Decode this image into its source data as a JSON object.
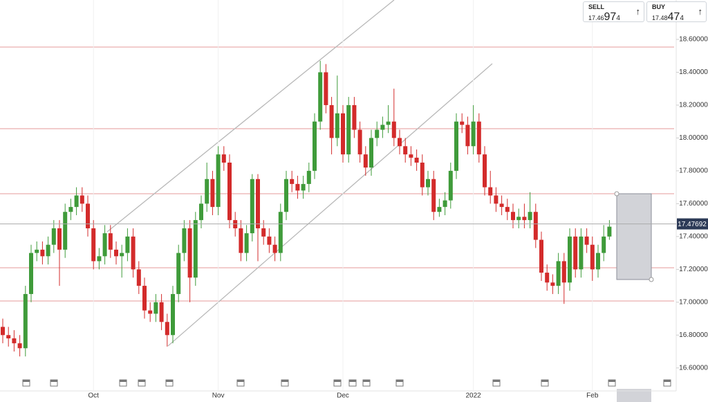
{
  "chart_data": {
    "type": "candlestick",
    "categories": [
      null,
      null,
      null,
      null,
      null,
      null,
      null,
      null,
      null,
      null,
      null,
      null,
      null,
      null,
      null,
      null,
      "Oct",
      null,
      null,
      null,
      null,
      null,
      null,
      null,
      null,
      null,
      null,
      null,
      null,
      null,
      null,
      null,
      null,
      null,
      null,
      null,
      null,
      null,
      "Nov",
      null,
      null,
      null,
      null,
      null,
      null,
      null,
      null,
      null,
      null,
      null,
      null,
      null,
      null,
      null,
      null,
      null,
      null,
      null,
      null,
      null,
      "Dec",
      null,
      null,
      null,
      null,
      null,
      null,
      null,
      null,
      null,
      null,
      null,
      null,
      null,
      null,
      null,
      null,
      null,
      null,
      null,
      null,
      null,
      null,
      "2022",
      null,
      null,
      null,
      null,
      null,
      null,
      null,
      null,
      null,
      null,
      null,
      null,
      null,
      null,
      null,
      null,
      null,
      null,
      null,
      null,
      "Feb",
      null,
      null,
      null
    ],
    "open": [
      16.85,
      16.8,
      16.78,
      16.75,
      16.72,
      17.05,
      17.3,
      17.32,
      17.28,
      17.35,
      17.45,
      17.32,
      17.55,
      17.58,
      17.65,
      17.6,
      17.45,
      17.25,
      17.28,
      17.42,
      17.32,
      17.28,
      17.3,
      17.4,
      17.2,
      17.1,
      16.95,
      16.93,
      17.0,
      16.88,
      16.8,
      17.05,
      17.3,
      17.45,
      17.15,
      17.5,
      17.6,
      17.75,
      17.58,
      17.9,
      17.85,
      17.5,
      17.45,
      17.3,
      17.42,
      17.75,
      17.45,
      17.4,
      17.35,
      17.3,
      17.55,
      17.75,
      17.72,
      17.68,
      17.72,
      17.8,
      18.1,
      18.4,
      18.2,
      18.0,
      18.15,
      17.9,
      18.2,
      18.05,
      17.9,
      17.82,
      18.0,
      18.05,
      18.08,
      18.1,
      18.0,
      17.95,
      17.9,
      17.88,
      17.85,
      17.7,
      17.75,
      17.55,
      17.58,
      17.62,
      17.8,
      18.1,
      18.08,
      17.95,
      18.1,
      17.9,
      17.7,
      17.65,
      17.6,
      17.58,
      17.55,
      17.5,
      17.52,
      17.5,
      17.55,
      17.38,
      17.18,
      17.12,
      17.1,
      17.25,
      17.12,
      17.4,
      17.2,
      17.4,
      17.35,
      17.2,
      17.3,
      17.4
    ],
    "high": [
      16.9,
      16.85,
      16.83,
      16.8,
      17.1,
      17.35,
      17.37,
      17.37,
      17.4,
      17.5,
      17.5,
      17.6,
      17.63,
      17.7,
      17.7,
      17.65,
      17.5,
      17.33,
      17.47,
      17.47,
      17.37,
      17.35,
      17.45,
      17.45,
      17.25,
      17.15,
      17.0,
      17.05,
      17.05,
      16.93,
      17.1,
      17.35,
      17.5,
      17.5,
      17.55,
      17.65,
      17.85,
      17.8,
      17.95,
      17.95,
      17.9,
      17.55,
      17.5,
      17.47,
      17.78,
      17.78,
      17.5,
      17.45,
      17.4,
      17.6,
      17.8,
      17.8,
      17.77,
      17.77,
      17.85,
      18.15,
      18.47,
      18.45,
      18.25,
      18.38,
      18.2,
      18.25,
      18.25,
      18.1,
      17.95,
      18.05,
      18.1,
      18.13,
      18.2,
      18.3,
      18.05,
      18.0,
      17.95,
      17.93,
      17.9,
      17.8,
      17.8,
      17.63,
      17.67,
      17.85,
      18.15,
      18.15,
      18.13,
      18.2,
      18.15,
      17.95,
      17.8,
      17.7,
      17.65,
      17.63,
      17.6,
      17.57,
      17.6,
      17.67,
      17.6,
      17.43,
      17.23,
      17.17,
      17.3,
      17.3,
      17.45,
      17.45,
      17.45,
      17.45,
      17.4,
      17.35,
      17.47,
      17.5
    ],
    "low": [
      16.75,
      16.73,
      16.7,
      16.67,
      16.67,
      17.0,
      17.25,
      17.23,
      17.23,
      17.3,
      17.1,
      17.27,
      17.5,
      17.53,
      17.55,
      17.4,
      17.2,
      17.2,
      17.23,
      17.27,
      17.23,
      17.15,
      17.25,
      17.15,
      17.05,
      16.9,
      16.88,
      16.88,
      16.83,
      16.73,
      16.75,
      17.0,
      17.25,
      17.0,
      17.1,
      17.45,
      17.55,
      17.53,
      17.53,
      17.8,
      17.45,
      17.4,
      17.25,
      17.25,
      17.37,
      17.25,
      17.35,
      17.3,
      17.25,
      17.25,
      17.5,
      17.67,
      17.63,
      17.63,
      17.67,
      17.75,
      18.05,
      18.15,
      17.9,
      17.95,
      17.85,
      17.85,
      18.0,
      17.85,
      17.77,
      17.77,
      17.95,
      18.0,
      18.03,
      17.95,
      17.9,
      17.85,
      17.83,
      17.8,
      17.65,
      17.65,
      17.5,
      17.52,
      17.53,
      17.57,
      17.75,
      18.03,
      17.9,
      17.9,
      17.85,
      17.65,
      17.6,
      17.55,
      17.53,
      17.5,
      17.45,
      17.45,
      17.45,
      17.45,
      17.33,
      17.13,
      17.07,
      17.05,
      17.05,
      16.99,
      17.07,
      17.15,
      17.15,
      17.3,
      17.13,
      17.15,
      17.25,
      17.38
    ],
    "close": [
      16.8,
      16.78,
      16.75,
      16.72,
      17.05,
      17.3,
      17.32,
      17.28,
      17.35,
      17.45,
      17.32,
      17.55,
      17.58,
      17.65,
      17.6,
      17.45,
      17.25,
      17.28,
      17.42,
      17.32,
      17.28,
      17.3,
      17.4,
      17.2,
      17.1,
      16.95,
      16.93,
      17.0,
      16.88,
      16.8,
      17.05,
      17.3,
      17.45,
      17.15,
      17.5,
      17.6,
      17.75,
      17.58,
      17.9,
      17.85,
      17.5,
      17.45,
      17.3,
      17.42,
      17.75,
      17.45,
      17.4,
      17.35,
      17.3,
      17.55,
      17.75,
      17.72,
      17.68,
      17.72,
      17.8,
      18.1,
      18.4,
      18.2,
      18.0,
      18.15,
      17.9,
      18.2,
      18.05,
      17.9,
      17.82,
      18.0,
      18.05,
      18.08,
      18.1,
      18.0,
      17.95,
      17.9,
      17.88,
      17.85,
      17.7,
      17.75,
      17.55,
      17.58,
      17.62,
      17.8,
      18.1,
      18.08,
      17.95,
      18.1,
      17.9,
      17.7,
      17.65,
      17.6,
      17.58,
      17.55,
      17.5,
      17.52,
      17.5,
      17.55,
      17.38,
      17.18,
      17.12,
      17.1,
      17.25,
      17.12,
      17.4,
      17.2,
      17.4,
      17.35,
      17.2,
      17.3,
      17.4,
      17.46
    ],
    "up_color": "#3f9b3a",
    "down_color": "#d32b2b",
    "current_price": 17.47692,
    "ylim": [
      16.46,
      18.84
    ],
    "yticks": [
      {
        "value": 16.6,
        "label": "16.60000"
      },
      {
        "value": 16.8,
        "label": "16.80000"
      },
      {
        "value": 17.0,
        "label": "17.00000"
      },
      {
        "value": 17.2,
        "label": "17.20000"
      },
      {
        "value": 17.4,
        "label": "17.40000"
      },
      {
        "value": 17.6,
        "label": "17.60000"
      },
      {
        "value": 17.8,
        "label": "17.80000"
      },
      {
        "value": 18.0,
        "label": "18.00000"
      },
      {
        "value": 18.2,
        "label": "18.20000"
      },
      {
        "value": 18.4,
        "label": "18.40000"
      },
      {
        "value": 18.6,
        "label": "18.60000"
      }
    ]
  },
  "quote": {
    "sell": {
      "label": "SELL",
      "price_main": "17.46",
      "price_big": "97",
      "price_small": "4"
    },
    "buy": {
      "label": "BUY",
      "price_main": "17.48",
      "price_big": "47",
      "price_small": "4"
    }
  }
}
